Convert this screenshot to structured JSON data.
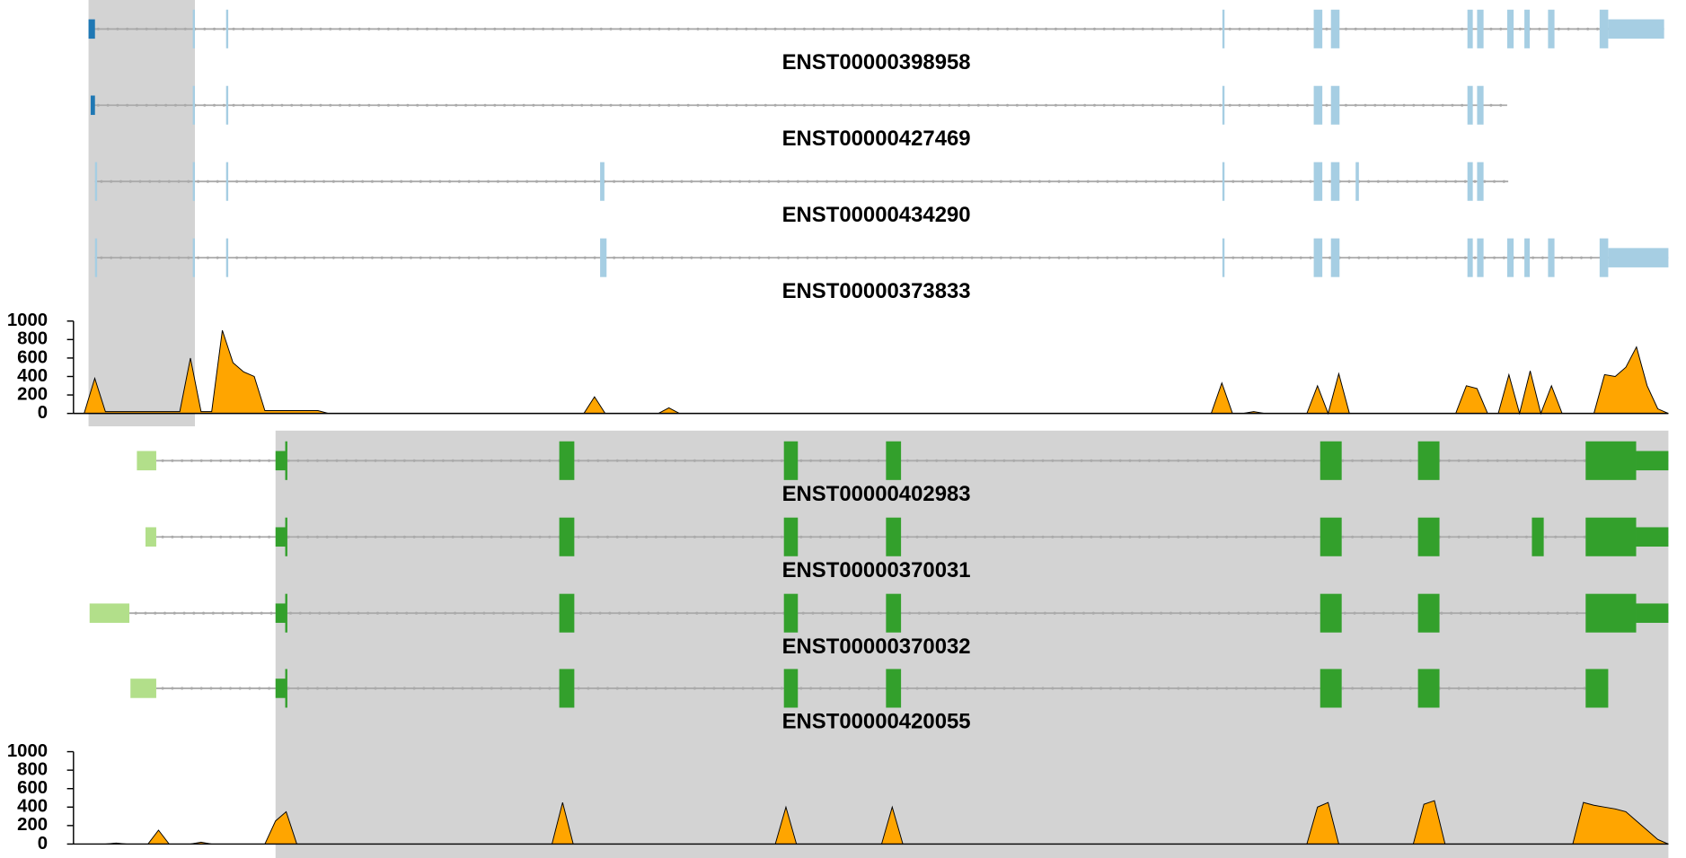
{
  "chart_data": [
    {
      "type": "area",
      "transcripts": [
        "ENST00000398958",
        "ENST00000427469",
        "ENST00000434290",
        "ENST00000373833"
      ],
      "color": "#ffa500",
      "values": [
        0,
        0,
        380,
        20,
        20,
        20,
        20,
        20,
        20,
        20,
        20,
        600,
        20,
        20,
        900,
        550,
        450,
        400,
        30,
        30,
        30,
        30,
        30,
        30,
        0,
        0,
        0,
        0,
        0,
        0,
        0,
        0,
        0,
        0,
        0,
        0,
        0,
        0,
        0,
        0,
        0,
        0,
        0,
        0,
        0,
        0,
        0,
        0,
        0,
        180,
        0,
        0,
        0,
        0,
        0,
        0,
        60,
        0,
        0,
        0,
        0,
        0,
        0,
        0,
        0,
        0,
        0,
        0,
        0,
        0,
        0,
        0,
        0,
        0,
        0,
        0,
        0,
        0,
        0,
        0,
        0,
        0,
        0,
        0,
        0,
        0,
        0,
        0,
        0,
        0,
        0,
        0,
        0,
        0,
        0,
        0,
        0,
        0,
        0,
        0,
        0,
        0,
        0,
        0,
        0,
        0,
        0,
        0,
        330,
        0,
        0,
        20,
        0,
        0,
        0,
        0,
        0,
        300,
        0,
        430,
        0,
        0,
        0,
        0,
        0,
        0,
        0,
        0,
        0,
        0,
        0,
        300,
        270,
        0,
        0,
        420,
        0,
        460,
        0,
        300,
        0,
        0,
        0,
        0,
        420,
        400,
        500,
        720,
        300,
        50,
        0
      ],
      "ylim": [
        0,
        1000
      ],
      "yticks": [
        0,
        200,
        400,
        600,
        800,
        1000
      ]
    },
    {
      "type": "area",
      "transcripts": [
        "ENST00000402983",
        "ENST00000370031",
        "ENST00000370032",
        "ENST00000420055"
      ],
      "color": "#ffa500",
      "values": [
        0,
        0,
        0,
        0,
        10,
        0,
        0,
        0,
        150,
        0,
        0,
        0,
        20,
        0,
        0,
        0,
        0,
        0,
        0,
        250,
        350,
        0,
        0,
        0,
        0,
        0,
        0,
        0,
        0,
        0,
        0,
        0,
        0,
        0,
        0,
        0,
        0,
        0,
        0,
        0,
        0,
        0,
        0,
        0,
        0,
        0,
        450,
        0,
        0,
        0,
        0,
        0,
        0,
        0,
        0,
        0,
        0,
        0,
        0,
        0,
        0,
        0,
        0,
        0,
        0,
        0,
        0,
        400,
        0,
        0,
        0,
        0,
        0,
        0,
        0,
        0,
        0,
        400,
        0,
        0,
        0,
        0,
        0,
        0,
        0,
        0,
        0,
        0,
        0,
        0,
        0,
        0,
        0,
        0,
        0,
        0,
        0,
        0,
        0,
        0,
        0,
        0,
        0,
        0,
        0,
        0,
        0,
        0,
        0,
        0,
        0,
        0,
        0,
        0,
        0,
        0,
        0,
        400,
        450,
        0,
        0,
        0,
        0,
        0,
        0,
        0,
        0,
        430,
        470,
        0,
        0,
        0,
        0,
        0,
        0,
        0,
        0,
        0,
        0,
        0,
        0,
        0,
        450,
        420,
        400,
        380,
        350,
        250,
        150,
        50,
        0
      ],
      "ylim": [
        0,
        1000
      ],
      "yticks": [
        0,
        200,
        400,
        600,
        800,
        1000
      ]
    }
  ]
}
